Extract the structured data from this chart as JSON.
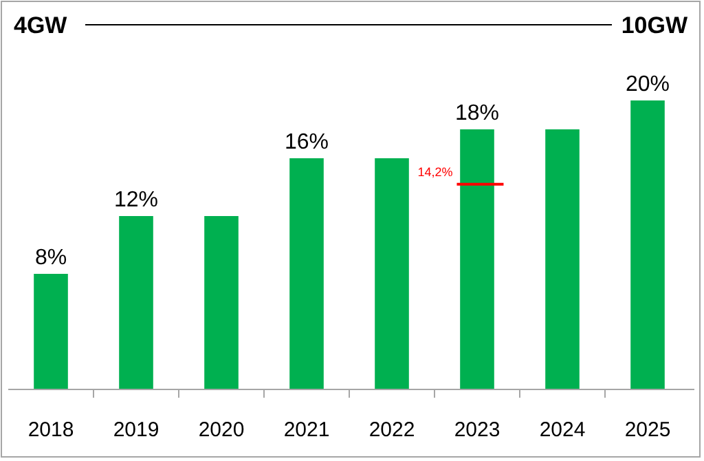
{
  "chart_data": {
    "type": "bar",
    "categories": [
      "2018",
      "2019",
      "2020",
      "2021",
      "2022",
      "2023",
      "2024",
      "2025"
    ],
    "values": [
      8,
      12,
      12,
      16,
      16,
      18,
      18,
      20
    ],
    "value_labels": [
      "8%",
      "12%",
      null,
      "16%",
      null,
      "18%",
      null,
      "20%"
    ],
    "color": "#00b050",
    "ref_lines": [
      {
        "axis": "y",
        "value": 14.2,
        "label": "14,2%",
        "color": "#ff0000"
      }
    ],
    "annotations": [
      "4GW",
      "10GW"
    ]
  }
}
